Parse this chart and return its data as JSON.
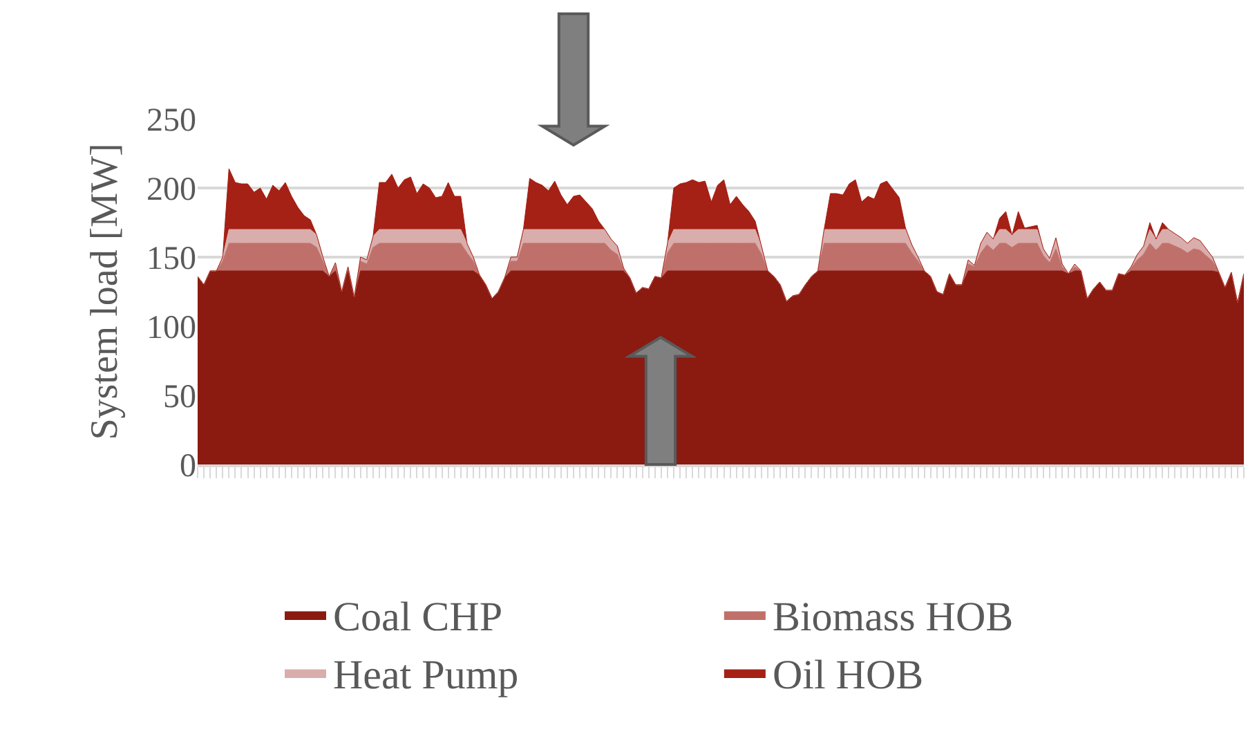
{
  "chart_data": {
    "type": "area",
    "stacked": true,
    "ylabel": "System load [MW]",
    "categories": [
      null,
      null,
      null,
      null,
      null,
      null,
      null,
      null,
      null,
      null,
      null,
      null,
      null,
      null,
      null,
      null,
      null,
      null,
      null,
      null,
      null,
      null,
      null,
      null,
      null,
      null,
      null,
      null,
      null,
      null,
      null,
      null,
      null,
      null,
      null,
      null,
      null,
      null,
      null,
      null,
      null,
      null,
      null,
      null,
      null,
      null,
      null,
      null,
      null,
      null,
      null,
      null,
      null,
      null,
      null,
      null,
      null,
      null,
      null,
      null,
      null,
      null,
      null,
      null,
      null,
      null,
      null,
      null,
      null,
      null,
      null,
      null,
      null,
      null,
      null,
      null,
      null,
      null,
      null,
      null,
      null,
      null,
      null,
      null,
      null,
      null,
      null,
      null,
      null,
      null,
      null,
      null,
      null,
      null,
      null,
      null,
      null,
      null,
      null,
      null,
      null,
      null,
      null,
      null,
      null,
      null,
      null,
      null,
      null,
      null,
      null,
      null,
      null,
      null,
      null,
      null,
      null,
      null,
      null,
      null,
      null,
      null,
      null,
      null,
      null,
      null,
      null,
      null,
      null,
      null,
      null,
      null,
      null,
      null,
      null,
      null,
      null,
      null,
      null,
      null,
      null,
      null,
      null,
      null,
      null,
      null,
      null,
      null,
      null,
      null,
      null,
      null,
      null,
      null,
      null,
      null,
      null,
      null,
      null,
      null,
      null,
      null,
      null,
      null,
      null,
      null,
      null,
      null
    ],
    "series": [
      {
        "name": "Coal CHP",
        "color": "#8b1a10",
        "values": [
          136,
          130,
          140,
          140,
          140,
          140,
          140,
          140,
          140,
          140,
          140,
          140,
          140,
          140,
          140,
          140,
          140,
          140,
          140,
          140,
          140,
          136,
          140,
          125,
          140,
          121,
          140,
          140,
          140,
          140,
          140,
          140,
          140,
          140,
          140,
          140,
          140,
          140,
          140,
          140,
          140,
          140,
          140,
          140,
          140,
          137,
          130,
          120,
          125,
          135,
          140,
          140,
          140,
          140,
          140,
          140,
          140,
          140,
          140,
          140,
          140,
          140,
          140,
          140,
          140,
          140,
          140,
          140,
          140,
          135,
          124,
          128,
          127,
          136,
          135,
          140,
          140,
          140,
          140,
          140,
          140,
          140,
          140,
          140,
          140,
          140,
          140,
          140,
          140,
          140,
          140,
          140,
          136,
          130,
          118,
          122,
          123,
          130,
          136,
          140,
          140,
          140,
          140,
          140,
          140,
          140,
          140,
          140,
          140,
          140,
          140,
          140,
          140,
          140,
          140,
          140,
          140,
          136,
          125,
          123,
          138,
          130,
          130,
          140,
          140,
          140,
          140,
          140,
          140,
          140,
          140,
          140,
          140,
          140,
          140,
          140,
          140,
          140,
          140,
          138,
          140,
          140,
          120,
          127,
          132,
          126,
          126,
          138,
          137,
          140,
          140,
          140,
          140,
          140,
          140,
          140,
          140,
          140,
          140,
          140,
          140,
          140,
          140,
          139,
          128,
          139,
          117,
          138
        ]
      },
      {
        "name": "Biomass HOB",
        "color": "#c0706a",
        "values": [
          0,
          0,
          0,
          0,
          7,
          20,
          20,
          20,
          20,
          20,
          20,
          20,
          20,
          20,
          20,
          20,
          20,
          20,
          20,
          17,
          7,
          0,
          4,
          0,
          2,
          0,
          7,
          5,
          17,
          20,
          20,
          20,
          20,
          20,
          20,
          20,
          20,
          20,
          20,
          20,
          20,
          20,
          20,
          13,
          7,
          0,
          0,
          0,
          0,
          0,
          7,
          7,
          20,
          20,
          20,
          20,
          20,
          20,
          20,
          20,
          20,
          20,
          20,
          20,
          20,
          20,
          15,
          12,
          1,
          0,
          0,
          0,
          0,
          0,
          0,
          13,
          20,
          20,
          20,
          20,
          20,
          20,
          20,
          20,
          20,
          20,
          20,
          20,
          20,
          20,
          12,
          0,
          0,
          0,
          0,
          0,
          0,
          0,
          0,
          0,
          20,
          20,
          20,
          20,
          20,
          20,
          20,
          20,
          20,
          20,
          20,
          20,
          20,
          20,
          13,
          7,
          0,
          0,
          0,
          0,
          0,
          0,
          0,
          5,
          3,
          13,
          19,
          15,
          20,
          20,
          17,
          20,
          20,
          20,
          20,
          11,
          6,
          16,
          3,
          0,
          3,
          0,
          0,
          0,
          0,
          0,
          0,
          0,
          0,
          2,
          8,
          12,
          20,
          15,
          20,
          20,
          18,
          16,
          13,
          16,
          15,
          11,
          7,
          0,
          0,
          0,
          0,
          0
        ]
      },
      {
        "name": "Heat Pump",
        "color": "#d9adab",
        "values": [
          0,
          0,
          0,
          0,
          3,
          10,
          10,
          10,
          10,
          10,
          10,
          10,
          10,
          10,
          10,
          10,
          10,
          10,
          10,
          9,
          3,
          0,
          2,
          0,
          1,
          0,
          3,
          3,
          8,
          10,
          10,
          10,
          10,
          10,
          10,
          10,
          10,
          10,
          10,
          10,
          10,
          10,
          10,
          7,
          3,
          0,
          0,
          0,
          0,
          0,
          3,
          3,
          10,
          10,
          10,
          10,
          10,
          10,
          10,
          10,
          10,
          10,
          10,
          10,
          10,
          10,
          8,
          6,
          1,
          0,
          0,
          0,
          0,
          0,
          0,
          7,
          10,
          10,
          10,
          10,
          10,
          10,
          10,
          10,
          10,
          10,
          10,
          10,
          10,
          10,
          6,
          0,
          0,
          0,
          0,
          0,
          0,
          0,
          0,
          0,
          10,
          10,
          10,
          10,
          10,
          10,
          10,
          10,
          10,
          10,
          10,
          10,
          10,
          10,
          6,
          3,
          0,
          0,
          0,
          0,
          0,
          0,
          0,
          3,
          1,
          7,
          9,
          8,
          10,
          10,
          9,
          10,
          10,
          10,
          10,
          5,
          3,
          8,
          2,
          0,
          2,
          0,
          0,
          0,
          0,
          0,
          0,
          0,
          0,
          1,
          4,
          6,
          10,
          8,
          10,
          10,
          9,
          8,
          7,
          8,
          7,
          5,
          3,
          0,
          0,
          0,
          0,
          0
        ]
      },
      {
        "name": "Oil HOB",
        "color": "#a52015",
        "values": [
          0,
          0,
          0,
          0,
          0,
          44,
          34,
          33,
          33,
          27,
          30,
          22,
          32,
          28,
          34,
          24,
          16,
          10,
          7,
          0,
          0,
          0,
          0,
          0,
          0,
          0,
          0,
          0,
          0,
          34,
          34,
          40,
          30,
          36,
          38,
          26,
          33,
          30,
          23,
          24,
          34,
          24,
          24,
          0,
          0,
          0,
          0,
          0,
          0,
          0,
          0,
          0,
          0,
          37,
          34,
          32,
          28,
          35,
          25,
          18,
          24,
          25,
          20,
          15,
          6,
          0,
          0,
          0,
          0,
          0,
          0,
          0,
          0,
          0,
          0,
          0,
          30,
          33,
          34,
          36,
          34,
          35,
          20,
          32,
          36,
          18,
          24,
          18,
          13,
          6,
          0,
          0,
          0,
          0,
          0,
          0,
          0,
          0,
          0,
          0,
          0,
          26,
          26,
          25,
          33,
          36,
          20,
          24,
          22,
          33,
          35,
          29,
          23,
          1,
          0,
          0,
          0,
          0,
          0,
          0,
          0,
          0,
          0,
          0,
          0,
          0,
          0,
          0,
          8,
          13,
          0,
          13,
          1,
          2,
          3,
          0,
          0,
          0,
          0,
          0,
          0,
          0,
          0,
          0,
          0,
          0,
          0,
          0,
          0,
          0,
          0,
          0,
          5,
          0,
          5,
          0,
          0,
          0,
          0,
          0,
          0,
          0,
          0,
          0,
          0,
          0,
          0,
          0
        ]
      }
    ],
    "ylim": [
      0,
      250
    ],
    "yticks": [
      0,
      50,
      100,
      150,
      200,
      250
    ],
    "grid": "y",
    "legend": "bottom",
    "tick_labels": "y"
  }
}
